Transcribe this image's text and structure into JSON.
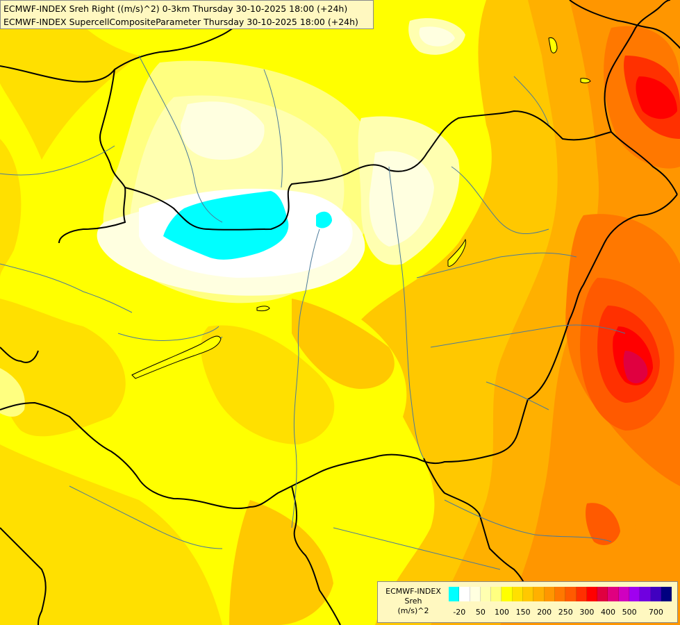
{
  "header": {
    "line1": "ECMWF-INDEX Sreh Right ((m/s)^2) 0-3km Thursday 30-10-2025 18:00 (+24h)",
    "line2": "ECMWF-INDEX SupercellCompositeParameter Thursday 30-10-2025 18:00 (+24h)"
  },
  "legend": {
    "line1": "ECMWF-INDEX",
    "line2": "Sreh",
    "line3": "(m/s)^2",
    "colors": [
      "#00ffff",
      "#ffffff",
      "#ffffe0",
      "#ffffb0",
      "#ffff80",
      "#ffff00",
      "#ffe000",
      "#ffc800",
      "#ffb000",
      "#ff9600",
      "#ff7800",
      "#ff5a00",
      "#ff3000",
      "#ff0000",
      "#e00040",
      "#e00080",
      "#d000c0",
      "#a000f0",
      "#7000e0",
      "#4000c0",
      "#000080"
    ],
    "ticks": [
      {
        "label": "-20",
        "index": 1
      },
      {
        "label": "50",
        "index": 3
      },
      {
        "label": "100",
        "index": 5
      },
      {
        "label": "150",
        "index": 7
      },
      {
        "label": "200",
        "index": 9
      },
      {
        "label": "250",
        "index": 11
      },
      {
        "label": "300",
        "index": 13
      },
      {
        "label": "400",
        "index": 15
      },
      {
        "label": "500",
        "index": 17
      },
      {
        "label": "700",
        "index": 19.5
      }
    ]
  }
}
